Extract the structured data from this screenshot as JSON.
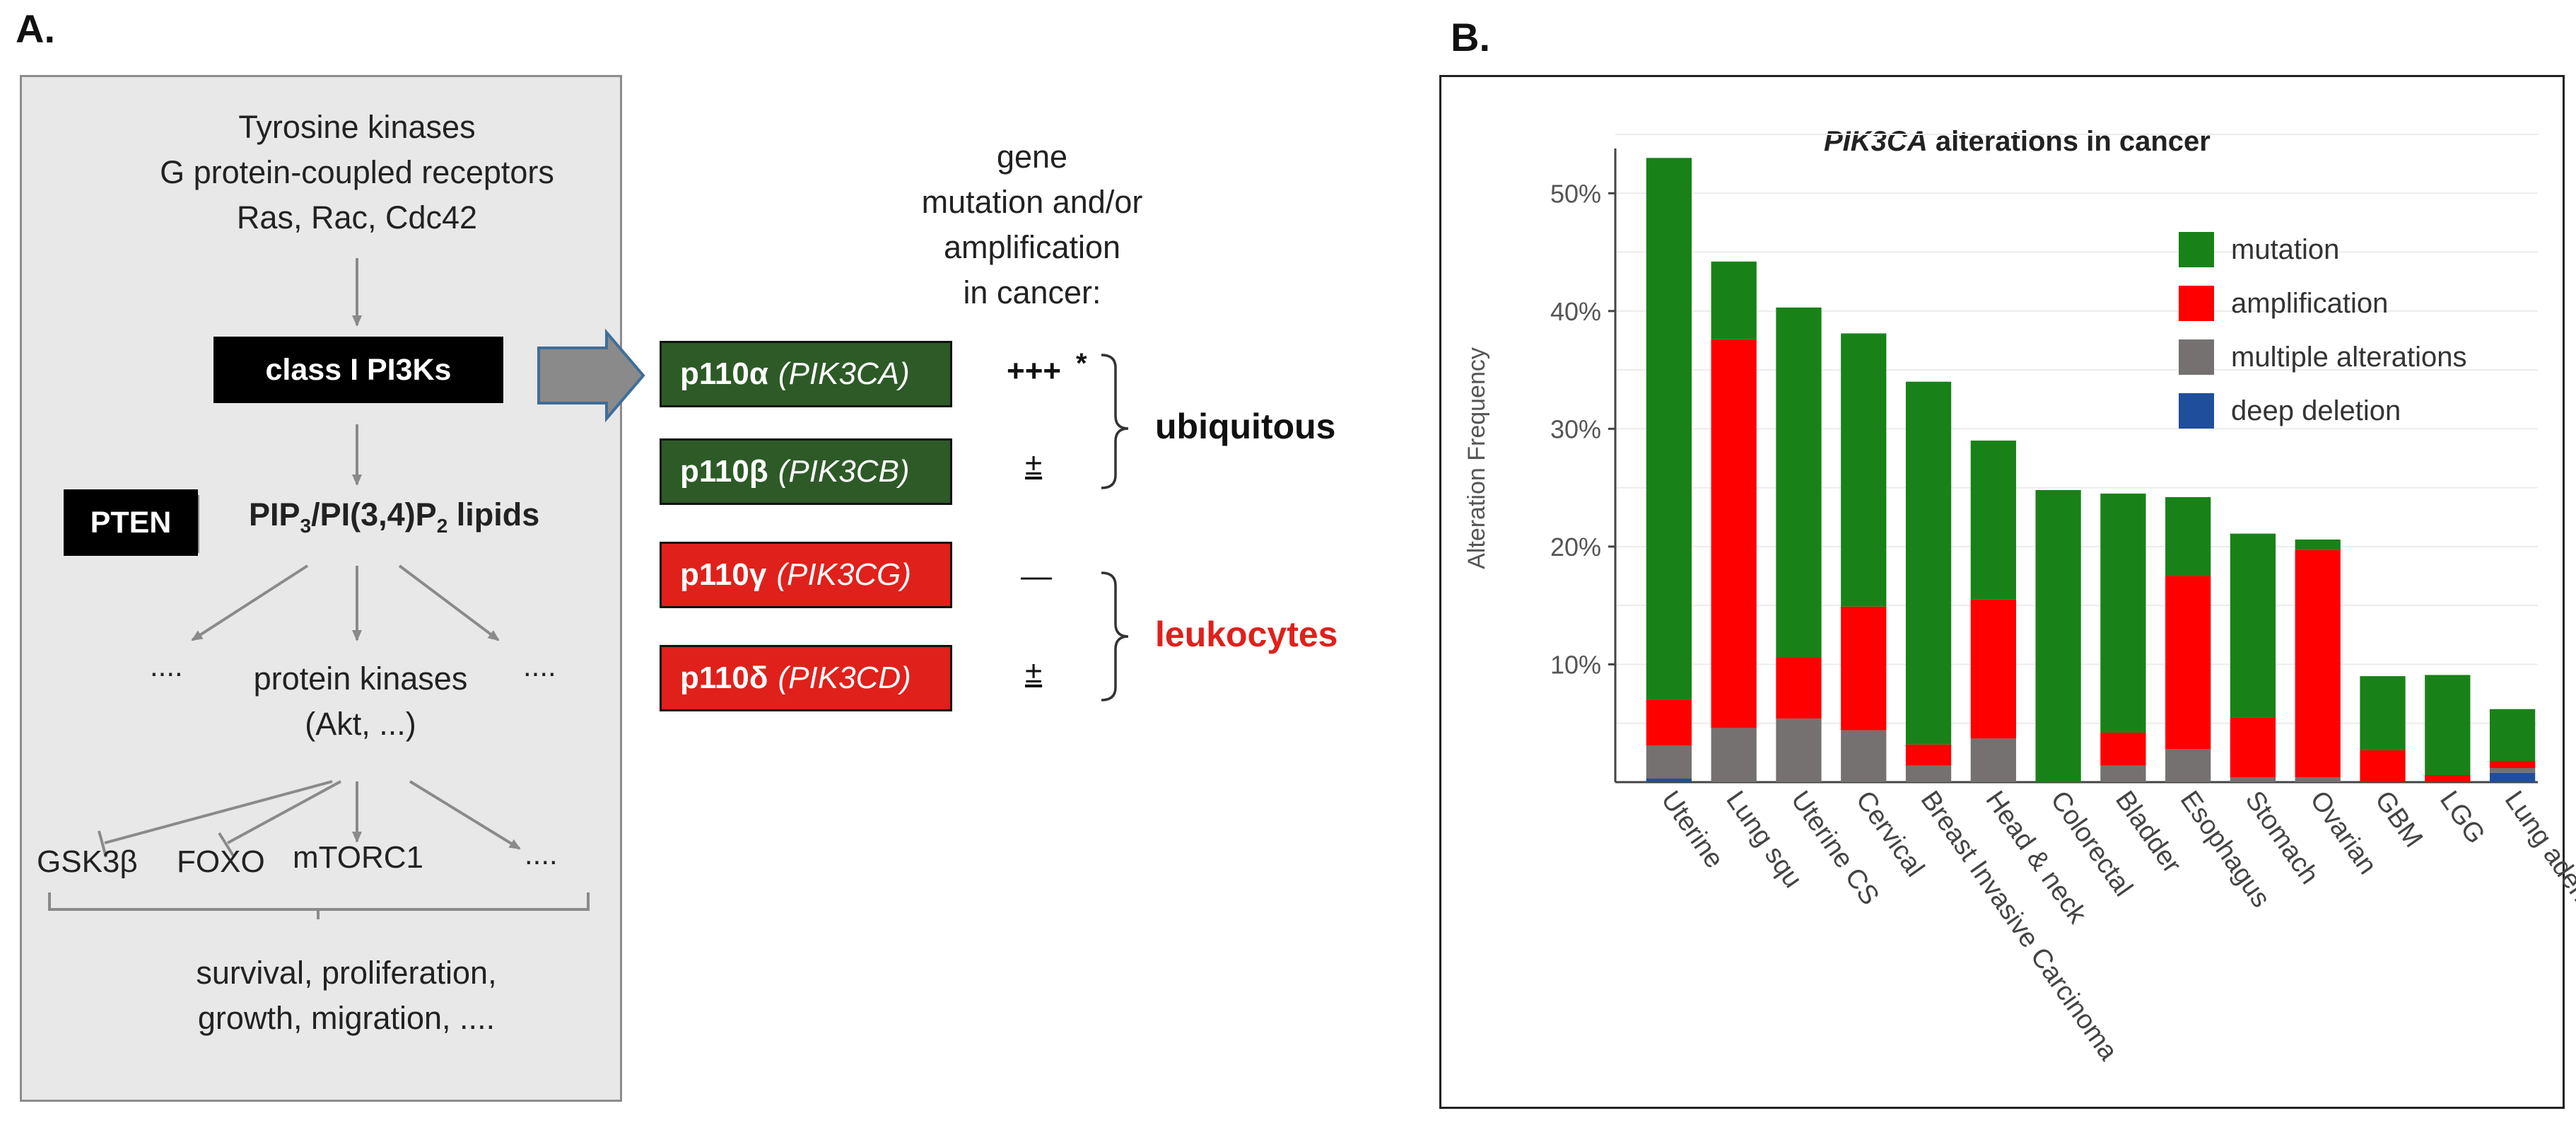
{
  "panel_a": {
    "letter": "A.",
    "inputs": [
      "Tyrosine kinases",
      "G protein-coupled receptors",
      "Ras, Rac, Cdc42"
    ],
    "class_box": "class I PI3Ks",
    "pten": "PTEN",
    "lipids": {
      "a": "PIP",
      "a_sub": "3",
      "b": "/PI(3,4)P",
      "b_sub": "2",
      "c": " lipids"
    },
    "dots_left": "....",
    "dots_right": "....",
    "kinases": [
      "protein kinases",
      "(Akt, ...)"
    ],
    "targets": {
      "gsk3b": "GSK3β",
      "foxo": "FOXO",
      "mtorc1": "mTORC1",
      "more": "...."
    },
    "outcomes": [
      "survival, proliferation,",
      "growth, migration, ...."
    ],
    "gene_header": [
      "gene",
      "mutation and/or",
      "amplification",
      "in cancer:"
    ],
    "isoforms": [
      {
        "name": "p110α",
        "gene": "(PIK3CA)",
        "level": "+++",
        "mark": "*",
        "color": "#2d5a27"
      },
      {
        "name": "p110β",
        "gene": "(PIK3CB)",
        "level": "±",
        "mark": "",
        "color": "#2d5a27"
      },
      {
        "name": "p110γ",
        "gene": "(PIK3CG)",
        "level": "—",
        "mark": "",
        "color": "#e0201b"
      },
      {
        "name": "p110δ",
        "gene": "(PIK3CD)",
        "level": "±",
        "mark": "",
        "color": "#e0201b"
      }
    ],
    "group_ubiquitous": "ubiquitous",
    "group_leukocytes": "leukocytes",
    "colors": {
      "ubiquitous_text": "#111111",
      "leukocytes_text": "#e0201b",
      "arrow_fill": "#8a8a8a",
      "arrow_stroke": "#3e6e9a"
    }
  },
  "panel_b": {
    "letter": "B.",
    "title_italic": "PIK3CA",
    "title_rest": " alterations in cancer"
  },
  "chart_data": {
    "type": "bar",
    "stacked": true,
    "title": "PIK3CA alterations in cancer",
    "ylabel": "Alteration Frequency",
    "xlabel": "",
    "ylim": [
      0,
      55
    ],
    "yticks": [
      "10%",
      "20%",
      "30%",
      "40%",
      "50%"
    ],
    "categories": [
      "Uterine",
      "Lung squ",
      "Uterine CS",
      "Cervical",
      "Breast Invasive Carcinoma",
      "Head & neck",
      "Colorectal",
      "Bladder",
      "Esophagus",
      "Stomach",
      "Ovarian",
      "GBM",
      "LGG",
      "Lung adeno"
    ],
    "series": [
      {
        "name": "deep deletion",
        "color": "#1f4e9c",
        "values": [
          0.3,
          0,
          0,
          0,
          0,
          0,
          0,
          0,
          0,
          0,
          0,
          0,
          0,
          0.8
        ]
      },
      {
        "name": "multiple alterations",
        "color": "#757171",
        "values": [
          2.8,
          4.6,
          5.4,
          4.4,
          1.4,
          3.7,
          0,
          1.4,
          2.8,
          0.4,
          0.4,
          0,
          0,
          0.4
        ]
      },
      {
        "name": "amplification",
        "color": "#fe0000",
        "values": [
          3.9,
          33.0,
          5.2,
          10.5,
          1.8,
          11.8,
          0,
          2.8,
          14.7,
          5.1,
          19.3,
          2.7,
          0.6,
          0.6
        ]
      },
      {
        "name": "mutation",
        "color": "#188218",
        "values": [
          46.0,
          6.6,
          29.7,
          23.2,
          30.8,
          13.5,
          24.8,
          20.3,
          6.7,
          15.6,
          0.9,
          6.3,
          8.5,
          4.4
        ]
      }
    ],
    "legend": {
      "placement": "top-right",
      "entries": [
        {
          "label": "mutation",
          "color": "#188218"
        },
        {
          "label": "amplification",
          "color": "#fe0000"
        },
        {
          "label": "multiple alterations",
          "color": "#757171"
        },
        {
          "label": "deep deletion",
          "color": "#1f4e9c"
        }
      ]
    },
    "grid": true
  }
}
